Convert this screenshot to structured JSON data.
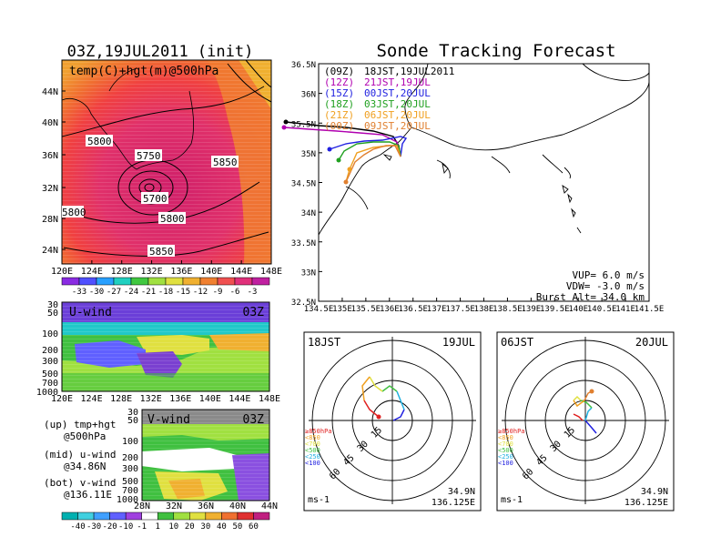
{
  "left_title": "03Z,19JUL2011 (init)",
  "main_title": "Sonde Tracking Forecast",
  "temp_map": {
    "label": "temp(C)+hgt(m)@500hPa",
    "y_ticks": [
      "44N",
      "40N",
      "36N",
      "32N",
      "28N",
      "24N"
    ],
    "x_ticks": [
      "120E",
      "124E",
      "128E",
      "132E",
      "136E",
      "140E",
      "144E",
      "148E"
    ],
    "contours": [
      "5800",
      "5750",
      "5700",
      "5800",
      "5850",
      "5850",
      "5800"
    ],
    "colorbar": [
      "-33",
      "-30",
      "-27",
      "-24",
      "-21",
      "-18",
      "-15",
      "-12",
      "-9",
      "-6",
      "-3"
    ],
    "colorbar_colors": [
      "#8a2be2",
      "#5050ff",
      "#28a0ff",
      "#20d0c0",
      "#40c840",
      "#a0e040",
      "#e0e040",
      "#f0b030",
      "#f08030",
      "#f05050",
      "#e0307a",
      "#c020a0"
    ]
  },
  "uwind": {
    "label": "U-wind",
    "time": "03Z",
    "y_ticks": [
      "30",
      "50",
      "100",
      "200",
      "300",
      "500",
      "700",
      "1000"
    ],
    "x_ticks": [
      "120E",
      "124E",
      "128E",
      "132E",
      "136E",
      "140E",
      "144E",
      "148E"
    ]
  },
  "vwind": {
    "label": "V-wind",
    "time": "03Z",
    "y_ticks": [
      "30",
      "50",
      "100",
      "200",
      "300",
      "500",
      "700",
      "1000"
    ],
    "x_ticks": [
      "28N",
      "32N",
      "36N",
      "40N",
      "44N"
    ],
    "colorbar": [
      "-40",
      "-30",
      "-20",
      "-10",
      "-1",
      "1",
      "10",
      "20",
      "30",
      "40",
      "50",
      "60"
    ],
    "colorbar_colors": [
      "#00b0b0",
      "#40d0e0",
      "#40a0ff",
      "#6060ff",
      "#a040e0",
      "#ffffff",
      "#40c040",
      "#a0e040",
      "#e0e040",
      "#f0b030",
      "#f07030",
      "#e03030",
      "#c02080"
    ]
  },
  "notes": [
    "(up) tmp+hgt",
    "@500hPa",
    "(mid) u-wind",
    "@34.86N",
    "(bot) v-wind",
    "@136.11E"
  ],
  "track_map": {
    "y_ticks": [
      "36.5N",
      "36N",
      "35.5N",
      "35N",
      "34.5N",
      "34N",
      "33.5N",
      "33N",
      "32.5N"
    ],
    "x_ticks": [
      "134.5E",
      "135E",
      "135.5E",
      "136E",
      "136.5E",
      "137E",
      "137.5E",
      "138E",
      "138.5E",
      "139E",
      "139.5E",
      "140E",
      "140.5E",
      "141E",
      "141.5E"
    ],
    "legend": [
      {
        "code": "(09Z)",
        "text": "18JST,19JUL2011",
        "color": "#000000"
      },
      {
        "code": "(12Z)",
        "text": "21JST,19JUL",
        "color": "#b000b0"
      },
      {
        "code": "(15Z)",
        "text": "00JST,20JUL",
        "color": "#2020e0"
      },
      {
        "code": "(18Z)",
        "text": "03JST,20JUL",
        "color": "#20a020"
      },
      {
        "code": "(21Z)",
        "text": "06JST,20JUL",
        "color": "#f0a020"
      },
      {
        "code": "(00Z)",
        "text": "09JST,20JUL",
        "color": "#e08030"
      }
    ],
    "vup": "VUP= 6.0 m/s",
    "vdw": "VDW= -3.0 m/s",
    "burst": "Burst Alt= 34.0 km"
  },
  "polar_left": {
    "jst": "18JST",
    "date": "19JUL",
    "rings": [
      "15",
      "30",
      "45",
      "60"
    ],
    "unit": "ms-1",
    "loc1": "34.9N",
    "loc2": "136.125E",
    "levels": [
      {
        "text": "≥850hPa",
        "color": "#e02020"
      },
      {
        "text": "<850",
        "color": "#f0a020"
      },
      {
        "text": "<700",
        "color": "#e0e040"
      },
      {
        "text": "<500",
        "color": "#40c040"
      },
      {
        "text": "<250",
        "color": "#20b0e0"
      },
      {
        "text": "<100",
        "color": "#2020e0"
      }
    ]
  },
  "polar_right": {
    "jst": "06JST",
    "date": "20JUL",
    "rings": [
      "15",
      "30",
      "45",
      "60"
    ],
    "unit": "ms-1",
    "loc1": "34.9N",
    "loc2": "136.125E",
    "levels": [
      {
        "text": "≥850hPa",
        "color": "#e02020"
      },
      {
        "text": "<850",
        "color": "#f0a020"
      },
      {
        "text": "<700",
        "color": "#e0e040"
      },
      {
        "text": "<500",
        "color": "#40c040"
      },
      {
        "text": "<250",
        "color": "#20b0e0"
      },
      {
        "text": "<100",
        "color": "#2020e0"
      }
    ]
  }
}
